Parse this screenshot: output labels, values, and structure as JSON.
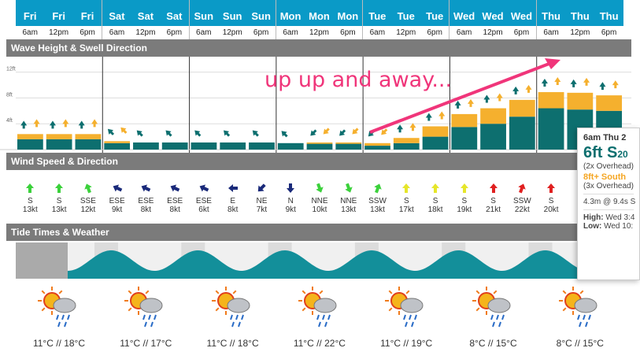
{
  "days": [
    {
      "name": "Fri",
      "slots": [
        "6am",
        "12pm",
        "6pm"
      ]
    },
    {
      "name": "Sat",
      "slots": [
        "6am",
        "12pm",
        "6pm"
      ]
    },
    {
      "name": "Sun",
      "slots": [
        "6am",
        "12pm",
        "6pm"
      ]
    },
    {
      "name": "Mon",
      "slots": [
        "6am",
        "12pm",
        "6pm"
      ]
    },
    {
      "name": "Tue",
      "slots": [
        "6am",
        "12pm",
        "6pm"
      ]
    },
    {
      "name": "Wed",
      "slots": [
        "6am",
        "12pm",
        "6pm"
      ]
    },
    {
      "name": "Thu",
      "slots": [
        "6am",
        "12pm",
        "6pm"
      ]
    }
  ],
  "sections": {
    "wave": "Wave Height & Swell Direction",
    "wind": "Wind Speed & Direction",
    "tide": "Tide Times & Weather"
  },
  "wave_axis": [
    "12ft",
    "8ft",
    "4ft"
  ],
  "annotation": "up up and away...",
  "chart_data": {
    "type": "bar",
    "title": "Wave Height & Swell Direction",
    "ylim": [
      0,
      12
    ],
    "series": [
      {
        "name": "primary",
        "values": [
          1.6,
          1.6,
          1.6,
          1.0,
          1.1,
          1.1,
          1.1,
          1.1,
          1.1,
          1.0,
          0.9,
          0.9,
          0.6,
          1.0,
          2.0,
          3.5,
          4.0,
          5.1,
          6.4,
          6.2,
          6.0
        ]
      },
      {
        "name": "secondary",
        "values": [
          0.8,
          0.8,
          0.8,
          0.3,
          0,
          0,
          0,
          0,
          0,
          0,
          0.2,
          0.2,
          0.4,
          0.8,
          1.6,
          2.0,
          2.4,
          2.6,
          2.5,
          2.6,
          2.4
        ]
      }
    ],
    "swell_dir": [
      "up",
      "up",
      "up",
      "nw",
      "nw",
      "nw",
      "nw",
      "nw",
      "nw",
      "nw",
      "sw",
      "sw",
      "sw",
      "up",
      "up",
      "up",
      "up",
      "up",
      "up",
      "up",
      "up"
    ]
  },
  "wind": [
    {
      "dir": "S",
      "kt": "13kt",
      "color": "#3bd13b",
      "rot": 0
    },
    {
      "dir": "S",
      "kt": "13kt",
      "color": "#3bd13b",
      "rot": 0
    },
    {
      "dir": "SSE",
      "kt": "12kt",
      "color": "#3bd13b",
      "rot": -20
    },
    {
      "dir": "ESE",
      "kt": "9kt",
      "color": "#1a2a7a",
      "rot": -65
    },
    {
      "dir": "ESE",
      "kt": "8kt",
      "color": "#1a2a7a",
      "rot": -65
    },
    {
      "dir": "ESE",
      "kt": "8kt",
      "color": "#1a2a7a",
      "rot": -65
    },
    {
      "dir": "ESE",
      "kt": "6kt",
      "color": "#1a2a7a",
      "rot": -65
    },
    {
      "dir": "E",
      "kt": "8kt",
      "color": "#1a2a7a",
      "rot": -90
    },
    {
      "dir": "NE",
      "kt": "7kt",
      "color": "#1a2a7a",
      "rot": -135
    },
    {
      "dir": "N",
      "kt": "9kt",
      "color": "#1a2a7a",
      "rot": 180
    },
    {
      "dir": "NNE",
      "kt": "10kt",
      "color": "#3bd13b",
      "rot": 160
    },
    {
      "dir": "NNE",
      "kt": "13kt",
      "color": "#3bd13b",
      "rot": 160
    },
    {
      "dir": "SSW",
      "kt": "13kt",
      "color": "#3bd13b",
      "rot": 20
    },
    {
      "dir": "S",
      "kt": "17kt",
      "color": "#e6e62a",
      "rot": 0
    },
    {
      "dir": "S",
      "kt": "18kt",
      "color": "#e6e62a",
      "rot": 0
    },
    {
      "dir": "S",
      "kt": "19kt",
      "color": "#e6e62a",
      "rot": 0
    },
    {
      "dir": "S",
      "kt": "21kt",
      "color": "#e02020",
      "rot": 0
    },
    {
      "dir": "SSW",
      "kt": "22kt",
      "color": "#e02020",
      "rot": 20
    },
    {
      "dir": "S",
      "kt": "20kt",
      "color": "#e02020",
      "rot": 0
    },
    {
      "dir": "",
      "kt": "",
      "color": "#e02020",
      "rot": 0
    },
    {
      "dir": "",
      "kt": "",
      "color": "#e02020",
      "rot": 0
    }
  ],
  "weather": [
    {
      "temp": "11°C // 18°C"
    },
    {
      "temp": "11°C // 17°C"
    },
    {
      "temp": "11°C // 18°C"
    },
    {
      "temp": "11°C // 22°C"
    },
    {
      "temp": "11°C // 19°C"
    },
    {
      "temp": "8°C // 15°C"
    },
    {
      "temp": "8°C // 15°C"
    }
  ],
  "popup": {
    "header": "6am Thu 2",
    "height": "6ft S",
    "height_sub": "20",
    "overhead1": "(2x Overhead)",
    "secondary": "8ft+ South",
    "overhead2": "(3x Overhead)",
    "swell": "4.3m @ 9.4s S",
    "high_label": "High:",
    "high_val": "Wed 3:4",
    "low_label": "Low:",
    "low_val": "Wed 10:"
  },
  "colors": {
    "teal": "#0d6f6f",
    "orange": "#f5b02e",
    "header_blue": "#0a9ac7",
    "pink": "#f0357a"
  }
}
